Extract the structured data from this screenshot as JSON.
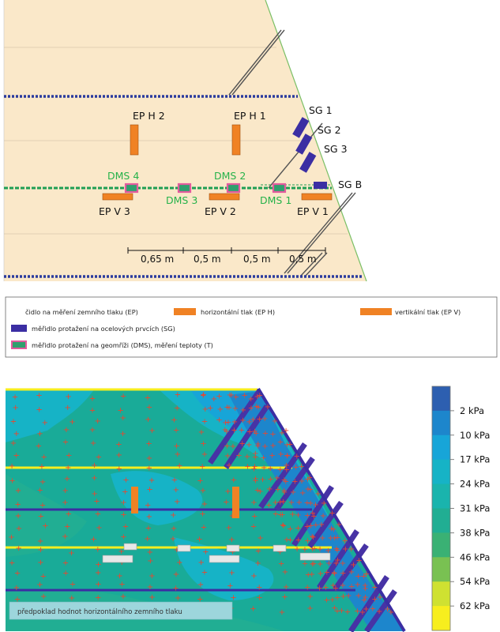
{
  "sensors": {
    "ep_h": [
      "EP H 2",
      "EP H 1"
    ],
    "ep_v": [
      "EP V 3",
      "EP V 2",
      "EP V 1"
    ],
    "dms": [
      "DMS 4",
      "DMS 3",
      "DMS 2",
      "DMS 1"
    ],
    "sg": [
      "SG 1",
      "SG 2",
      "SG 3",
      "SG B"
    ]
  },
  "dimensions": [
    "0,65 m",
    "0,5 m",
    "0,5 m",
    "0,5 m"
  ],
  "legend": {
    "ep_label": "čidlo na měření zemního tlaku (EP)",
    "ep_h_label": "horizontální tlak (EP H)",
    "ep_v_label": "vertikální tlak (EP V)",
    "sg_label": "měřidlo protažení na ocelových prvcích (SG)",
    "dms_label": "měřidlo protažení na geomříži (DMS), měření teploty (T)"
  },
  "colors": {
    "soil": "#fae8c9",
    "ep": "#f08224",
    "sg": "#3b2ea3",
    "dms_border": "#e35b9e",
    "dms_fill": "#2fa06e",
    "geogrid": "#1f9e54",
    "green_text": "#26b24a"
  },
  "contour": {
    "scale_labels": [
      "2 kPa",
      "10 kPa",
      "17 kPa",
      "24 kPa",
      "31 kPa",
      "38 kPa",
      "46 kPa",
      "54 kPa",
      "62 kPa"
    ],
    "scale_colors": [
      "#2d5fb0",
      "#1d86cc",
      "#17a5d8",
      "#16b3c6",
      "#1ab4ad",
      "#21ae93",
      "#3ab174",
      "#79c152",
      "#cfe131",
      "#f7ee1e"
    ],
    "note": "předpoklad hodnot horizontálního zemního tlaku"
  }
}
